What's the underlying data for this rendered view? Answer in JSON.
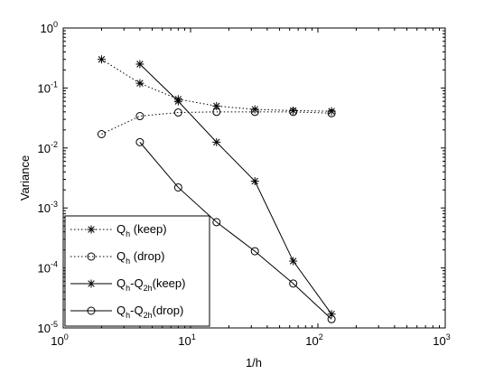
{
  "chart_data": {
    "type": "line",
    "xlabel": "1/h",
    "ylabel": "Variance",
    "x_scale": "log",
    "y_scale": "log",
    "xlim": [
      1,
      1000
    ],
    "ylim": [
      1e-05,
      1
    ],
    "x_ticks": [
      {
        "base": "10",
        "exp": "0"
      },
      {
        "base": "10",
        "exp": "1"
      },
      {
        "base": "10",
        "exp": "2"
      },
      {
        "base": "10",
        "exp": "3"
      }
    ],
    "y_ticks": [
      {
        "base": "10",
        "exp": "-5"
      },
      {
        "base": "10",
        "exp": "-4"
      },
      {
        "base": "10",
        "exp": "-3"
      },
      {
        "base": "10",
        "exp": "-2"
      },
      {
        "base": "10",
        "exp": "-1"
      },
      {
        "base": "10",
        "exp": "0"
      }
    ],
    "grid": false,
    "legend_position": "bottom-left",
    "series": [
      {
        "name": "Qh (keep)",
        "legend_main": "Q",
        "legend_sub": "h",
        "legend_rest": " (keep)",
        "marker": "star",
        "linestyle": "dotted",
        "x": [
          2,
          4,
          8,
          16,
          32,
          64,
          128
        ],
        "y": [
          0.3,
          0.12,
          0.065,
          0.05,
          0.044,
          0.042,
          0.041
        ]
      },
      {
        "name": "Qh (drop)",
        "legend_main": "Q",
        "legend_sub": "h",
        "legend_rest": " (drop)",
        "marker": "circle",
        "linestyle": "dotted",
        "x": [
          2,
          4,
          8,
          16,
          32,
          64,
          128
        ],
        "y": [
          0.017,
          0.034,
          0.039,
          0.04,
          0.04,
          0.04,
          0.038
        ]
      },
      {
        "name": "Qh-Q2h(keep)",
        "legend_main": "Q",
        "legend_sub": "h",
        "legend_mid": "-Q",
        "legend_sub2": "2h",
        "legend_rest": "(keep)",
        "marker": "star",
        "linestyle": "solid",
        "x": [
          4,
          8,
          16,
          32,
          64,
          128
        ],
        "y": [
          0.25,
          0.06,
          0.0125,
          0.0028,
          0.00013,
          1.7e-05
        ]
      },
      {
        "name": "Qh-Q2h(drop)",
        "legend_main": "Q",
        "legend_sub": "h",
        "legend_mid": "-Q",
        "legend_sub2": "2h",
        "legend_rest": "(drop)",
        "marker": "circle",
        "linestyle": "solid",
        "x": [
          4,
          8,
          16,
          32,
          64,
          128
        ],
        "y": [
          0.0125,
          0.0022,
          0.00058,
          0.00019,
          5.5e-05,
          1.4e-05
        ]
      }
    ]
  }
}
